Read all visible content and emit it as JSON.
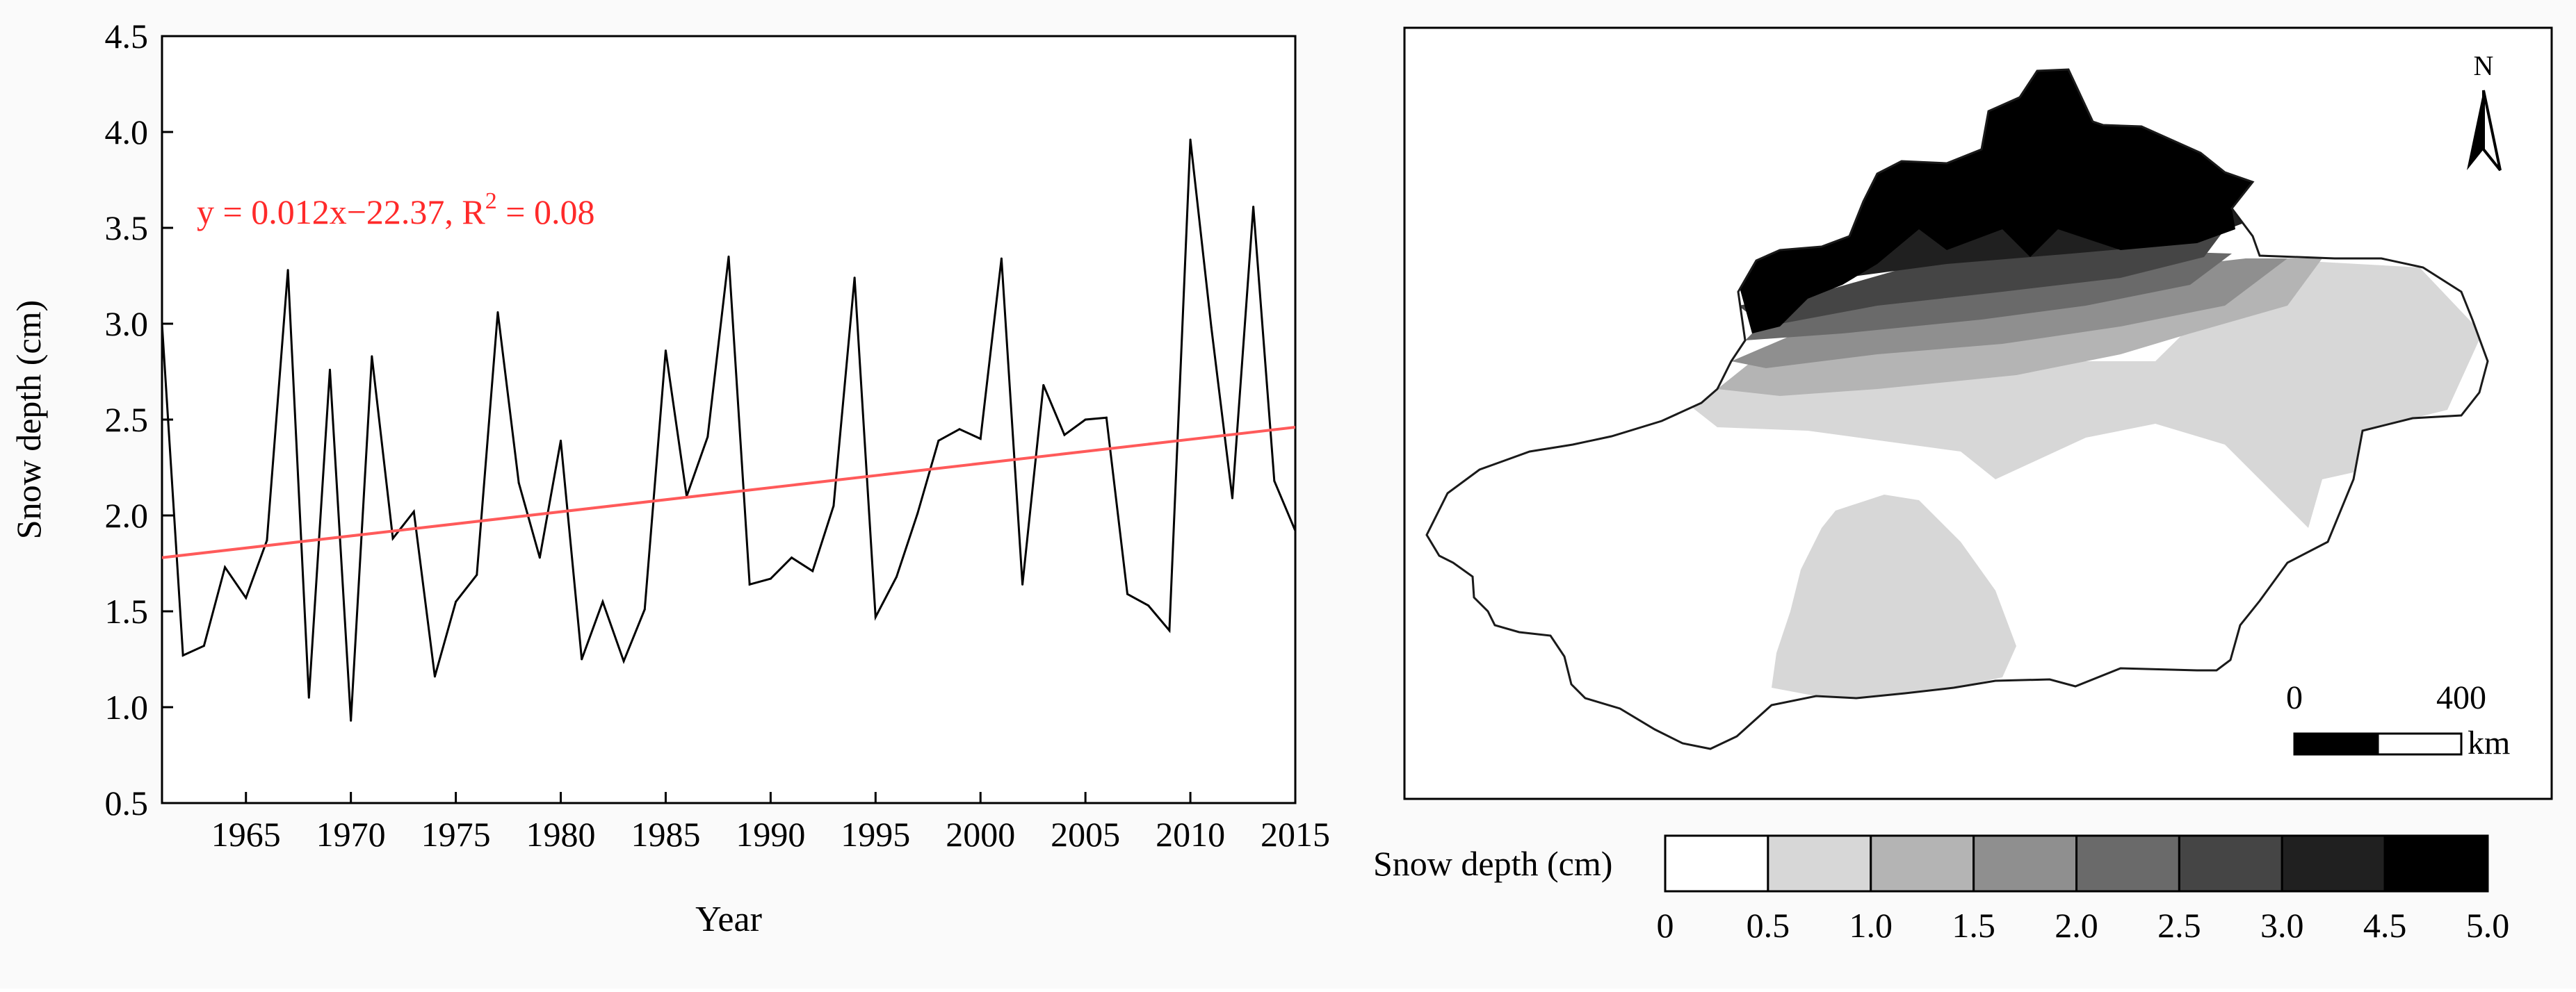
{
  "chart_data": [
    {
      "type": "line",
      "xlabel": "Year",
      "ylabel": "Snow depth (cm)",
      "xlim": [
        1961,
        2015
      ],
      "ylim": [
        0.5,
        4.5
      ],
      "x_ticks": [
        "1965",
        "1970",
        "1975",
        "1980",
        "1985",
        "1990",
        "1995",
        "2000",
        "2005",
        "2010",
        "2015"
      ],
      "y_ticks": [
        "0.5",
        "1.0",
        "1.5",
        "2.0",
        "2.5",
        "3.0",
        "3.5",
        "4.0",
        "4.5"
      ],
      "annotation": "y = 0.012x−22.37, R",
      "annotation_sup": "2",
      "annotation_tail": " = 0.08",
      "annotation_color": "#ff2a2a",
      "series": [
        {
          "color": "#000000",
          "x": [
            1961,
            1962,
            1963,
            1964,
            1965,
            1966,
            1967,
            1968,
            1969,
            1970,
            1971,
            1972,
            1973,
            1974,
            1975,
            1976,
            1977,
            1978,
            1979,
            1980,
            1981,
            1982,
            1983,
            1984,
            1985,
            1986,
            1987,
            1988,
            1989,
            1990,
            1991,
            1992,
            1993,
            1994,
            1995,
            1996,
            1997,
            1998,
            1999,
            2000,
            2001,
            2002,
            2003,
            2004,
            2005,
            2006,
            2007,
            2008,
            2009,
            2010,
            2011,
            2012,
            2013,
            2014,
            2015
          ],
          "y": [
            3.0,
            1.27,
            1.32,
            1.73,
            1.57,
            1.87,
            3.28,
            1.05,
            2.76,
            0.93,
            2.83,
            1.88,
            2.02,
            1.16,
            1.55,
            1.69,
            3.06,
            2.17,
            1.78,
            2.39,
            1.25,
            1.55,
            1.24,
            1.51,
            2.86,
            2.1,
            2.41,
            3.35,
            1.64,
            1.67,
            1.78,
            1.71,
            2.05,
            3.24,
            1.47,
            1.68,
            2.01,
            2.39,
            2.45,
            2.4,
            3.34,
            1.64,
            2.68,
            2.42,
            2.5,
            2.51,
            1.59,
            1.53,
            1.4,
            3.96,
            2.98,
            2.09,
            3.61,
            2.18,
            1.92
          ]
        },
        {
          "color": "#ff5a5a",
          "x": [
            1961,
            2015
          ],
          "y": [
            1.78,
            2.46
          ]
        }
      ]
    },
    {
      "type": "heatmap",
      "north_label": "N",
      "scale_labels": [
        "0",
        "400"
      ],
      "scale_unit": "km",
      "legend_title": "Snow depth (cm)",
      "bins": [
        {
          "from": "0",
          "to": "0.5",
          "color": "#ffffff"
        },
        {
          "from": "0.5",
          "to": "1.0",
          "color": "#d7d7d7"
        },
        {
          "from": "1.0",
          "to": "1.5",
          "color": "#b4b4b4"
        },
        {
          "from": "1.5",
          "to": "2.0",
          "color": "#8f8f8f"
        },
        {
          "from": "2.0",
          "to": "2.5",
          "color": "#6a6a6a"
        },
        {
          "from": "2.5",
          "to": "3.0",
          "color": "#454545"
        },
        {
          "from": "3.0",
          "to": "4.5",
          "color": "#202020"
        },
        {
          "from": "4.5",
          "to": "5.0",
          "color": "#000000"
        }
      ],
      "legend_ticks": [
        "0",
        "0.5",
        "1.0",
        "1.5",
        "2.0",
        "2.5",
        "3.0",
        "4.5",
        "5.0"
      ]
    }
  ]
}
